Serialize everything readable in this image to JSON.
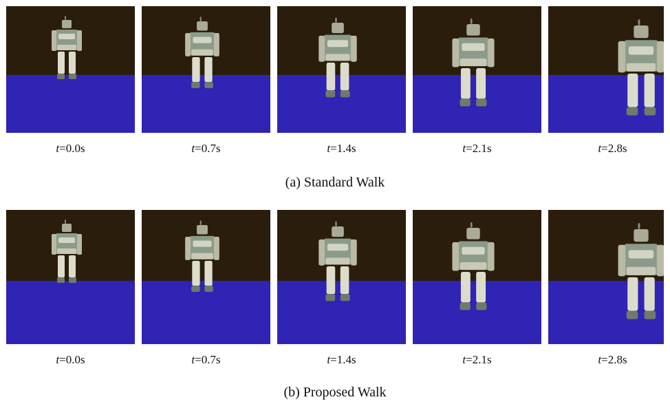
{
  "rows": [
    {
      "caption": "(a) Standard Walk",
      "frames": [
        {
          "variable": "t",
          "text": "=0.0s"
        },
        {
          "variable": "t",
          "text": "=0.7s"
        },
        {
          "variable": "t",
          "text": "=1.4s"
        },
        {
          "variable": "t",
          "text": "=2.1s"
        },
        {
          "variable": "t",
          "text": "=2.8s"
        }
      ]
    },
    {
      "caption": "(b) Proposed Walk",
      "frames": [
        {
          "variable": "t",
          "text": "=0.0s"
        },
        {
          "variable": "t",
          "text": "=0.7s"
        },
        {
          "variable": "t",
          "text": "=1.4s"
        },
        {
          "variable": "t",
          "text": "=2.1s"
        },
        {
          "variable": "t",
          "text": "=2.8s"
        }
      ]
    }
  ]
}
